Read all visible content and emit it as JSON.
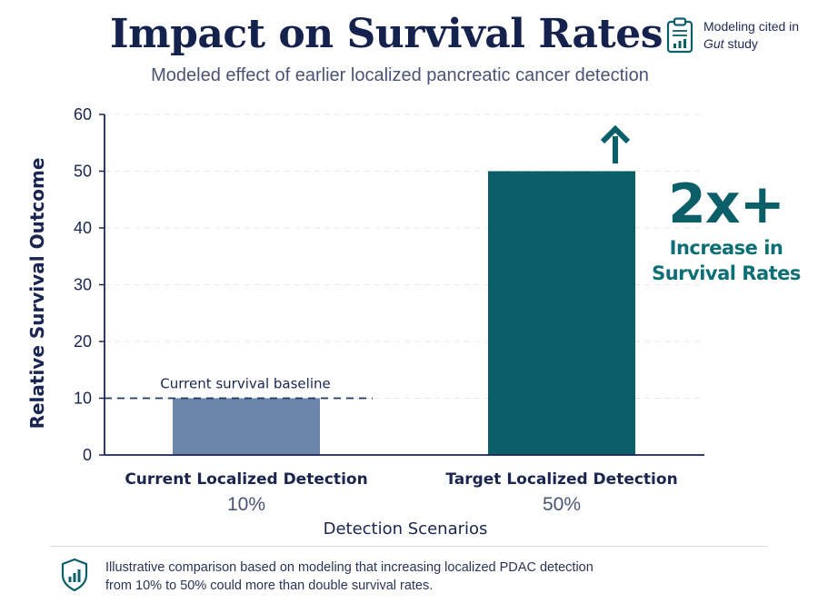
{
  "header": {
    "title": "Impact on Survival Rates",
    "subtitle": "Modeled effect of earlier localized pancreatic cancer detection"
  },
  "citation": {
    "icon": "clipboard-chart-icon",
    "line1": "Modeling cited in",
    "journal": "Gut",
    "line2_suffix": " study"
  },
  "chart_data": {
    "type": "bar",
    "title": "Impact on Survival Rates",
    "subtitle": "Modeled effect of earlier localized pancreatic cancer detection",
    "xlabel": "Detection Scenarios",
    "ylabel": "Relative Survival Outcome",
    "ylim": [
      0,
      60
    ],
    "yticks": [
      0,
      10,
      20,
      30,
      40,
      50,
      60
    ],
    "grid": true,
    "categories": [
      "Current Localized Detection",
      "Target Localized Detection"
    ],
    "category_sublabels": [
      "10%",
      "50%"
    ],
    "values": [
      10,
      50
    ],
    "colors": [
      "#6b86a8",
      "#0b5f68"
    ],
    "baseline": {
      "value": 10,
      "label": "Current survival baseline"
    },
    "callout": {
      "value_text": "2x+",
      "text_lines": [
        "Increase in",
        "Survival Rates"
      ],
      "icon": "arrow-up-icon"
    }
  },
  "footer": {
    "icon": "shield-chart-icon",
    "lines": [
      "Illustrative comparison based on modeling that increasing localized PDAC detection",
      "from 10% to 50% could more than double survival rates."
    ]
  },
  "colors": {
    "title": "#16224e",
    "accent": "#0b5f68",
    "current_bar": "#6b86a8",
    "axis": "#1a2550",
    "grid": "#e6e8ee"
  }
}
